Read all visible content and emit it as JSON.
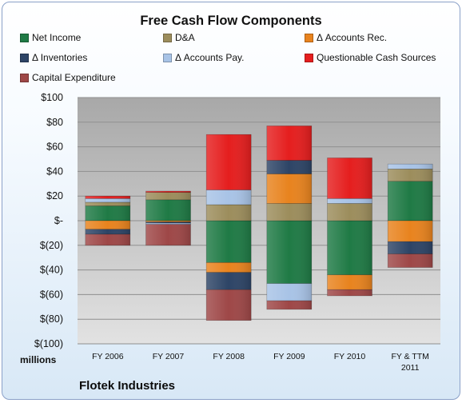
{
  "chart_data": {
    "type": "bar",
    "stacked": true,
    "title": "Free Cash Flow Components",
    "units_label": "millions",
    "footer": "Flotek Industries",
    "categories": [
      "FY 2006",
      "FY 2007",
      "FY 2008",
      "FY 2009",
      "FY 2010",
      "FY & TTM\n2011"
    ],
    "ylim": [
      -100,
      100
    ],
    "y_ticks": [
      "$100",
      "$80",
      "$60",
      "$40",
      "$20",
      "$-",
      "$(20)",
      "$(40)",
      "$(60)",
      "$(80)",
      "$(100)"
    ],
    "grid": true,
    "legend_position": "top",
    "series": [
      {
        "name": "Net Income",
        "color": "#1f7a45",
        "values": [
          12,
          17,
          -34,
          -51,
          -44,
          32
        ]
      },
      {
        "name": "D&A",
        "color": "#9c8d5c",
        "values": [
          3,
          6,
          13,
          14,
          14,
          10
        ]
      },
      {
        "name": "Δ Accounts Rec.",
        "color": "#e8831e",
        "values": [
          -7,
          -1,
          -8,
          24,
          -12,
          -17
        ]
      },
      {
        "name": "Δ Inventories",
        "color": "#2d4466",
        "values": [
          -4,
          -1,
          -14,
          11,
          0,
          -10
        ]
      },
      {
        "name": "Δ Accounts Pay.",
        "color": "#a8c3e6",
        "values": [
          3,
          -1,
          12,
          -14,
          4,
          4
        ]
      },
      {
        "name": "Questionable Cash Sources",
        "color": "#e51e1e",
        "values": [
          2,
          1,
          45,
          28,
          33,
          0
        ]
      },
      {
        "name": "Capital Expenditure",
        "color": "#9e4747",
        "values": [
          -9,
          -17,
          -25,
          -7,
          -5,
          -11
        ]
      }
    ]
  }
}
